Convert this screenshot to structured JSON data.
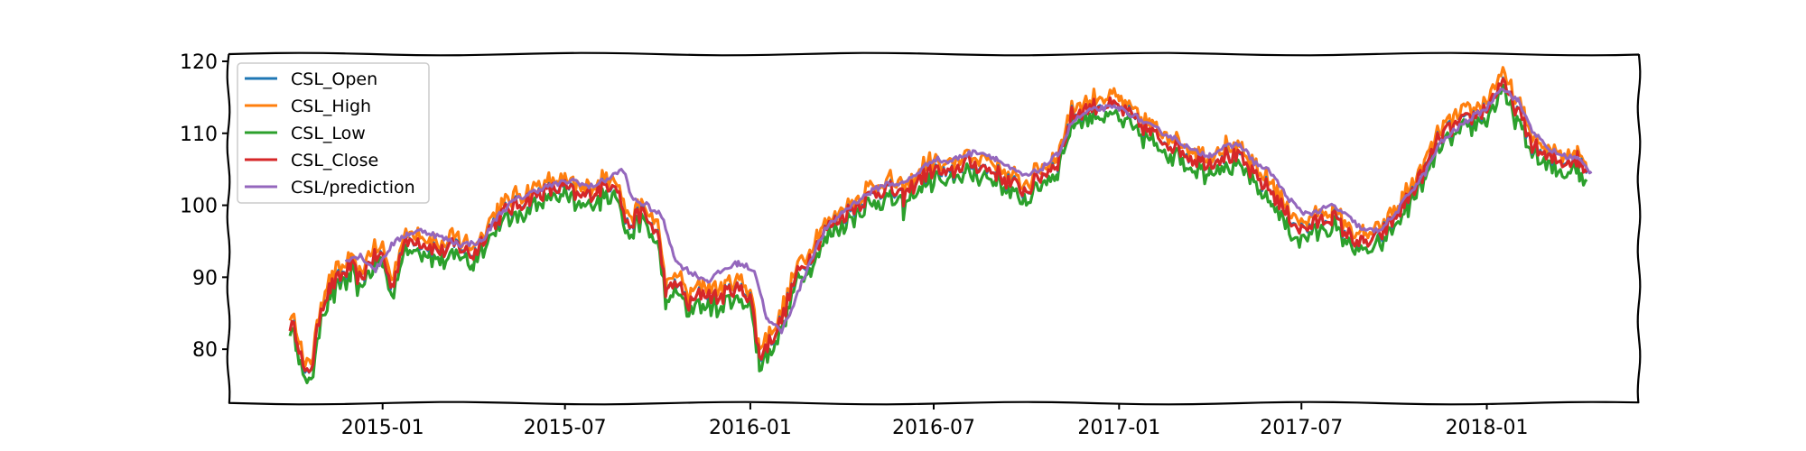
{
  "chart_data": {
    "type": "line",
    "title": "",
    "xlabel": "",
    "ylabel": "",
    "xlim": [
      "2014-08-01",
      "2018-06-01"
    ],
    "ylim": [
      72.5,
      121
    ],
    "grid": false,
    "legend_position": "top-left",
    "x_ticks": [
      "2015-01",
      "2015-07",
      "2016-01",
      "2016-07",
      "2017-01",
      "2017-07",
      "2018-01"
    ],
    "y_ticks": [
      80,
      90,
      100,
      110,
      120
    ],
    "series": [
      {
        "name": "CSL_Open",
        "color": "#1f77b4"
      },
      {
        "name": "CSL_High",
        "color": "#ff7f0e"
      },
      {
        "name": "CSL_Low",
        "color": "#2ca02c"
      },
      {
        "name": "CSL_Close",
        "color": "#d62728"
      },
      {
        "name": "CSL/prediction",
        "color": "#9467bd"
      }
    ],
    "close_points": [
      [
        "2014-10-01",
        83.5
      ],
      [
        "2014-10-08",
        82.0
      ],
      [
        "2014-10-16",
        76.0
      ],
      [
        "2014-10-24",
        78.5
      ],
      [
        "2014-11-01",
        86.0
      ],
      [
        "2014-11-10",
        88.5
      ],
      [
        "2014-11-20",
        90.0
      ],
      [
        "2014-12-01",
        91.5
      ],
      [
        "2014-12-10",
        89.5
      ],
      [
        "2014-12-20",
        92.5
      ],
      [
        "2015-01-01",
        93.0
      ],
      [
        "2015-01-10",
        88.5
      ],
      [
        "2015-01-20",
        94.0
      ],
      [
        "2015-02-01",
        95.5
      ],
      [
        "2015-02-15",
        94.5
      ],
      [
        "2015-03-01",
        93.5
      ],
      [
        "2015-03-15",
        94.5
      ],
      [
        "2015-04-01",
        93.0
      ],
      [
        "2015-04-15",
        96.5
      ],
      [
        "2015-05-01",
        99.0
      ],
      [
        "2015-05-15",
        100.0
      ],
      [
        "2015-06-01",
        101.5
      ],
      [
        "2015-06-15",
        102.0
      ],
      [
        "2015-07-01",
        102.5
      ],
      [
        "2015-07-15",
        101.0
      ],
      [
        "2015-08-01",
        102.0
      ],
      [
        "2015-08-20",
        103.5
      ],
      [
        "2015-09-01",
        97.0
      ],
      [
        "2015-09-15",
        99.0
      ],
      [
        "2015-10-01",
        96.0
      ],
      [
        "2015-10-10",
        87.5
      ],
      [
        "2015-10-20",
        89.5
      ],
      [
        "2015-11-01",
        86.0
      ],
      [
        "2015-11-15",
        88.0
      ],
      [
        "2015-12-01",
        87.0
      ],
      [
        "2015-12-15",
        88.5
      ],
      [
        "2016-01-01",
        87.5
      ],
      [
        "2016-01-10",
        79.0
      ],
      [
        "2016-01-20",
        81.0
      ],
      [
        "2016-02-01",
        84.0
      ],
      [
        "2016-02-15",
        90.0
      ],
      [
        "2016-03-01",
        93.0
      ],
      [
        "2016-03-15",
        96.5
      ],
      [
        "2016-04-01",
        98.5
      ],
      [
        "2016-04-15",
        100.0
      ],
      [
        "2016-05-01",
        101.5
      ],
      [
        "2016-05-15",
        102.5
      ],
      [
        "2016-06-01",
        101.0
      ],
      [
        "2016-06-15",
        103.5
      ],
      [
        "2016-07-01",
        105.0
      ],
      [
        "2016-07-15",
        104.0
      ],
      [
        "2016-08-01",
        106.0
      ],
      [
        "2016-08-15",
        105.5
      ],
      [
        "2016-09-01",
        104.5
      ],
      [
        "2016-09-15",
        103.0
      ],
      [
        "2016-10-01",
        102.0
      ],
      [
        "2016-10-15",
        104.0
      ],
      [
        "2016-11-01",
        106.0
      ],
      [
        "2016-11-15",
        112.5
      ],
      [
        "2016-12-01",
        113.5
      ],
      [
        "2016-12-15",
        114.0
      ],
      [
        "2017-01-01",
        113.5
      ],
      [
        "2017-01-15",
        112.0
      ],
      [
        "2017-02-01",
        110.0
      ],
      [
        "2017-02-15",
        109.0
      ],
      [
        "2017-03-01",
        108.0
      ],
      [
        "2017-03-15",
        106.5
      ],
      [
        "2017-04-01",
        106.0
      ],
      [
        "2017-04-15",
        107.0
      ],
      [
        "2017-05-01",
        106.5
      ],
      [
        "2017-05-15",
        104.0
      ],
      [
        "2017-06-01",
        102.0
      ],
      [
        "2017-06-15",
        99.0
      ],
      [
        "2017-07-01",
        96.5
      ],
      [
        "2017-07-15",
        97.5
      ],
      [
        "2017-08-01",
        98.5
      ],
      [
        "2017-08-15",
        96.0
      ],
      [
        "2017-09-01",
        94.5
      ],
      [
        "2017-09-15",
        95.5
      ],
      [
        "2017-10-01",
        98.0
      ],
      [
        "2017-10-15",
        101.0
      ],
      [
        "2017-11-01",
        105.0
      ],
      [
        "2017-11-15",
        109.5
      ],
      [
        "2017-12-01",
        111.0
      ],
      [
        "2017-12-15",
        112.0
      ],
      [
        "2018-01-01",
        113.5
      ],
      [
        "2018-01-15",
        117.0
      ],
      [
        "2018-02-01",
        113.0
      ],
      [
        "2018-02-15",
        108.5
      ],
      [
        "2018-03-01",
        106.5
      ],
      [
        "2018-03-15",
        106.0
      ],
      [
        "2018-04-01",
        106.5
      ],
      [
        "2018-04-10",
        104.5
      ]
    ],
    "prediction_points": [
      [
        "2014-11-25",
        92.5
      ],
      [
        "2014-12-10",
        93.0
      ],
      [
        "2014-12-25",
        91.0
      ],
      [
        "2015-01-10",
        94.5
      ],
      [
        "2015-01-25",
        96.0
      ],
      [
        "2015-02-10",
        96.5
      ],
      [
        "2015-03-01",
        95.5
      ],
      [
        "2015-03-20",
        94.5
      ],
      [
        "2015-04-10",
        95.0
      ],
      [
        "2015-04-25",
        98.5
      ],
      [
        "2015-05-10",
        100.5
      ],
      [
        "2015-05-25",
        101.5
      ],
      [
        "2015-06-10",
        102.5
      ],
      [
        "2015-06-25",
        103.0
      ],
      [
        "2015-07-10",
        103.5
      ],
      [
        "2015-07-25",
        102.5
      ],
      [
        "2015-08-10",
        103.5
      ],
      [
        "2015-08-28",
        105.0
      ],
      [
        "2015-09-05",
        101.0
      ],
      [
        "2015-09-20",
        100.0
      ],
      [
        "2015-10-05",
        98.5
      ],
      [
        "2015-10-20",
        92.0
      ],
      [
        "2015-11-05",
        90.5
      ],
      [
        "2015-11-20",
        89.5
      ],
      [
        "2015-12-05",
        91.0
      ],
      [
        "2015-12-20",
        92.0
      ],
      [
        "2016-01-05",
        91.0
      ],
      [
        "2016-01-18",
        84.0
      ],
      [
        "2016-02-01",
        82.5
      ],
      [
        "2016-02-15",
        87.0
      ],
      [
        "2016-03-01",
        92.5
      ],
      [
        "2016-03-15",
        96.5
      ],
      [
        "2016-04-01",
        99.0
      ],
      [
        "2016-04-15",
        100.5
      ],
      [
        "2016-05-01",
        102.0
      ],
      [
        "2016-05-15",
        103.0
      ],
      [
        "2016-06-01",
        103.0
      ],
      [
        "2016-06-15",
        104.5
      ],
      [
        "2016-07-01",
        106.5
      ],
      [
        "2016-07-15",
        106.0
      ],
      [
        "2016-08-01",
        107.0
      ],
      [
        "2016-08-15",
        107.5
      ],
      [
        "2016-09-01",
        106.5
      ],
      [
        "2016-09-15",
        105.0
      ],
      [
        "2016-10-01",
        104.0
      ],
      [
        "2016-10-15",
        105.0
      ],
      [
        "2016-11-01",
        107.0
      ],
      [
        "2016-11-15",
        111.5
      ],
      [
        "2016-12-01",
        113.0
      ],
      [
        "2016-12-15",
        113.5
      ],
      [
        "2017-01-01",
        113.5
      ],
      [
        "2017-01-15",
        112.5
      ],
      [
        "2017-02-01",
        111.0
      ],
      [
        "2017-02-15",
        110.0
      ],
      [
        "2017-03-01",
        109.0
      ],
      [
        "2017-03-15",
        107.5
      ],
      [
        "2017-04-01",
        107.0
      ],
      [
        "2017-04-15",
        108.0
      ],
      [
        "2017-05-01",
        108.5
      ],
      [
        "2017-05-15",
        106.0
      ],
      [
        "2017-06-01",
        104.5
      ],
      [
        "2017-06-15",
        101.5
      ],
      [
        "2017-07-01",
        99.0
      ],
      [
        "2017-07-15",
        99.0
      ],
      [
        "2017-08-01",
        100.0
      ],
      [
        "2017-08-15",
        98.5
      ],
      [
        "2017-09-01",
        96.5
      ],
      [
        "2017-09-15",
        96.5
      ],
      [
        "2017-10-01",
        98.5
      ],
      [
        "2017-10-15",
        101.5
      ],
      [
        "2017-11-01",
        104.5
      ],
      [
        "2017-11-15",
        108.5
      ],
      [
        "2017-12-01",
        110.5
      ],
      [
        "2017-12-15",
        112.0
      ],
      [
        "2018-01-01",
        113.5
      ],
      [
        "2018-01-15",
        116.5
      ],
      [
        "2018-02-01",
        114.5
      ],
      [
        "2018-02-15",
        110.5
      ],
      [
        "2018-03-01",
        108.0
      ],
      [
        "2018-03-15",
        107.0
      ],
      [
        "2018-04-01",
        106.5
      ],
      [
        "2018-04-15",
        104.5
      ]
    ]
  }
}
